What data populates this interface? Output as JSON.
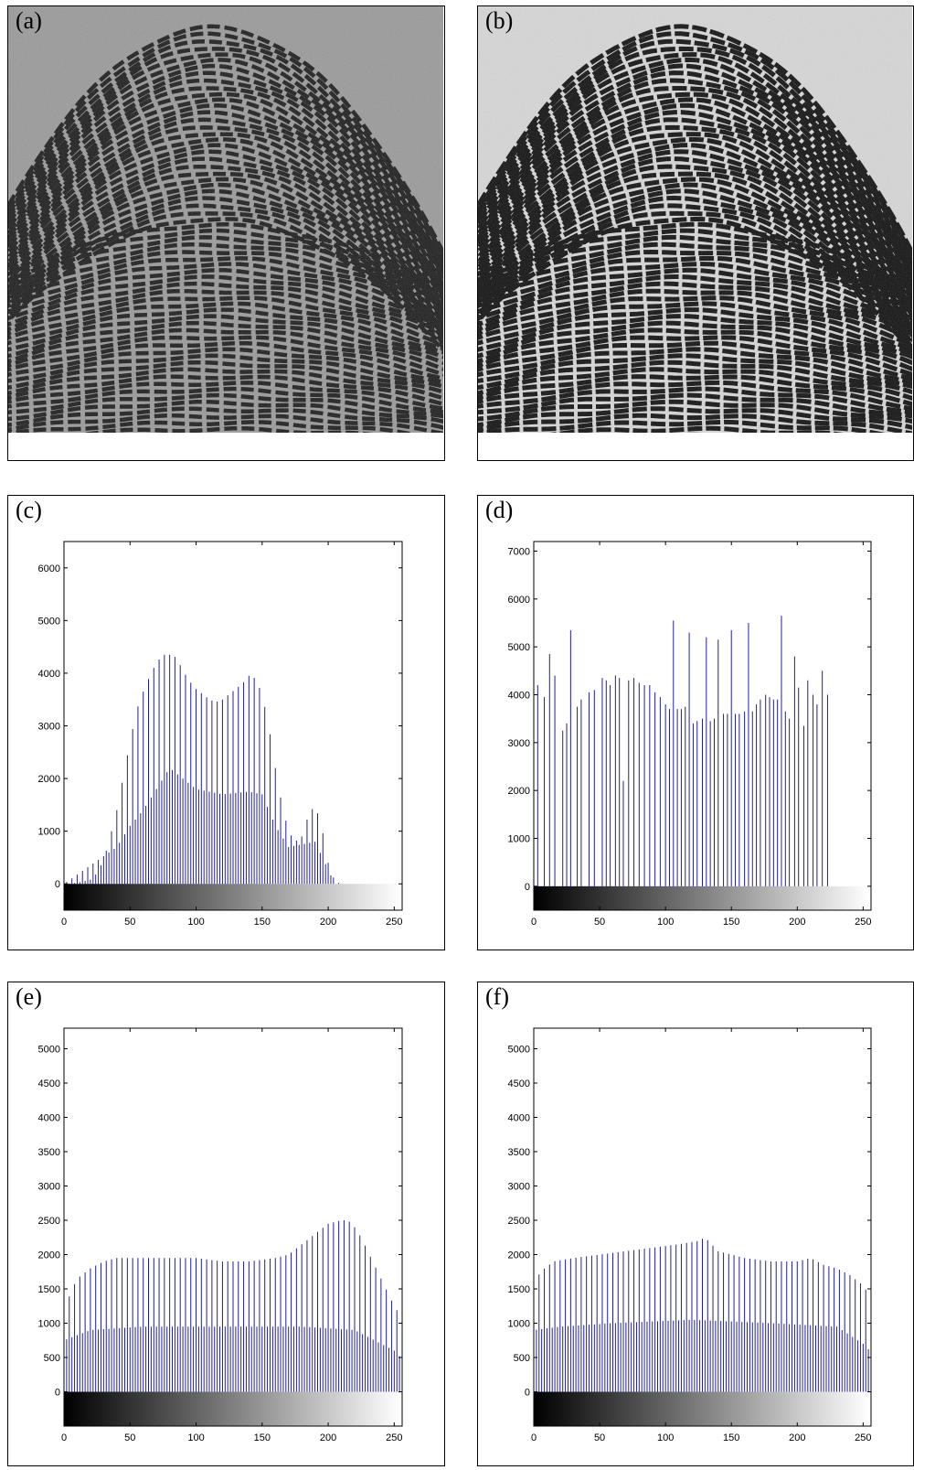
{
  "panels": {
    "a": {
      "label": "(a)"
    },
    "b": {
      "label": "(b)"
    },
    "c": {
      "label": "(c)"
    },
    "d": {
      "label": "(d)"
    },
    "e": {
      "label": "(e)"
    },
    "f": {
      "label": "(f)"
    }
  },
  "colors": {
    "bar": "#1f1f9a",
    "axis": "#000000"
  },
  "chart_data": [
    {
      "panel": "c",
      "type": "bar",
      "xlim": [
        0,
        256
      ],
      "ylim": [
        -500,
        6500
      ],
      "xticks": [
        0,
        50,
        100,
        150,
        200,
        250
      ],
      "yticks": [
        0,
        1000,
        2000,
        3000,
        4000,
        5000,
        6000
      ],
      "colorbar": true,
      "envelope": [
        [
          0,
          0
        ],
        [
          10,
          20
        ],
        [
          20,
          80
        ],
        [
          25,
          200
        ],
        [
          30,
          450
        ],
        [
          35,
          900
        ],
        [
          40,
          1400
        ],
        [
          45,
          2050
        ],
        [
          50,
          2700
        ],
        [
          55,
          3300
        ],
        [
          60,
          3650
        ],
        [
          65,
          3950
        ],
        [
          70,
          4200
        ],
        [
          75,
          4350
        ],
        [
          80,
          4350
        ],
        [
          85,
          4300
        ],
        [
          90,
          4050
        ],
        [
          95,
          3850
        ],
        [
          100,
          3700
        ],
        [
          105,
          3600
        ],
        [
          110,
          3500
        ],
        [
          115,
          3450
        ],
        [
          120,
          3500
        ],
        [
          125,
          3600
        ],
        [
          130,
          3700
        ],
        [
          135,
          3800
        ],
        [
          140,
          3950
        ],
        [
          145,
          3900
        ],
        [
          150,
          3600
        ],
        [
          155,
          3000
        ],
        [
          160,
          2200
        ],
        [
          165,
          1500
        ],
        [
          170,
          1000
        ],
        [
          175,
          800
        ],
        [
          180,
          900
        ],
        [
          185,
          1300
        ],
        [
          190,
          1500
        ],
        [
          195,
          1100
        ],
        [
          200,
          400
        ],
        [
          205,
          50
        ],
        [
          210,
          0
        ],
        [
          256,
          0
        ]
      ],
      "alt_envelope": [
        [
          0,
          0
        ],
        [
          40,
          700
        ],
        [
          50,
          1100
        ],
        [
          60,
          1400
        ],
        [
          70,
          1800
        ],
        [
          80,
          2200
        ],
        [
          90,
          2000
        ],
        [
          100,
          1800
        ],
        [
          120,
          1700
        ],
        [
          140,
          1750
        ],
        [
          150,
          1700
        ],
        [
          160,
          1100
        ],
        [
          170,
          700
        ],
        [
          190,
          800
        ],
        [
          205,
          0
        ],
        [
          256,
          0
        ]
      ]
    },
    {
      "panel": "d",
      "type": "bar",
      "xlim": [
        0,
        256
      ],
      "ylim": [
        -500,
        7200
      ],
      "xticks": [
        0,
        50,
        100,
        150,
        200,
        250
      ],
      "yticks": [
        0,
        1000,
        2000,
        3000,
        4000,
        5000,
        6000,
        7000
      ],
      "colorbar": true,
      "bars": [
        [
          3,
          4200
        ],
        [
          8,
          3950
        ],
        [
          12,
          4850
        ],
        [
          16,
          4400
        ],
        [
          22,
          3250
        ],
        [
          25,
          3400
        ],
        [
          28,
          5350
        ],
        [
          33,
          3750
        ],
        [
          36,
          3900
        ],
        [
          42,
          4050
        ],
        [
          46,
          4100
        ],
        [
          52,
          4350
        ],
        [
          55,
          4300
        ],
        [
          58,
          4200
        ],
        [
          62,
          4400
        ],
        [
          65,
          4350
        ],
        [
          68,
          2200
        ],
        [
          72,
          4300
        ],
        [
          76,
          4350
        ],
        [
          80,
          4250
        ],
        [
          84,
          4200
        ],
        [
          88,
          4200
        ],
        [
          92,
          4050
        ],
        [
          96,
          3950
        ],
        [
          100,
          3800
        ],
        [
          103,
          3700
        ],
        [
          106,
          5550
        ],
        [
          109,
          3700
        ],
        [
          112,
          3700
        ],
        [
          115,
          3750
        ],
        [
          118,
          5300
        ],
        [
          121,
          3400
        ],
        [
          124,
          3450
        ],
        [
          128,
          3500
        ],
        [
          131,
          5200
        ],
        [
          134,
          3450
        ],
        [
          137,
          3500
        ],
        [
          140,
          5150
        ],
        [
          144,
          3600
        ],
        [
          147,
          3600
        ],
        [
          150,
          5350
        ],
        [
          153,
          3600
        ],
        [
          156,
          3600
        ],
        [
          160,
          3650
        ],
        [
          163,
          5500
        ],
        [
          166,
          3650
        ],
        [
          169,
          3800
        ],
        [
          172,
          3900
        ],
        [
          176,
          4000
        ],
        [
          179,
          3950
        ],
        [
          182,
          3900
        ],
        [
          185,
          3900
        ],
        [
          188,
          5650
        ],
        [
          191,
          3650
        ],
        [
          194,
          3500
        ],
        [
          198,
          4800
        ],
        [
          201,
          4150
        ],
        [
          205,
          3350
        ],
        [
          208,
          4300
        ],
        [
          212,
          4000
        ],
        [
          215,
          3800
        ],
        [
          219,
          4500
        ],
        [
          223,
          4000
        ]
      ]
    },
    {
      "panel": "e",
      "type": "bar",
      "xlim": [
        0,
        256
      ],
      "ylim": [
        -500,
        5300
      ],
      "xticks": [
        0,
        50,
        100,
        150,
        200,
        250
      ],
      "yticks": [
        0,
        500,
        1000,
        1500,
        2000,
        2500,
        3000,
        3500,
        4000,
        4500,
        5000
      ],
      "colorbar": true,
      "envelope": [
        [
          0,
          1150
        ],
        [
          5,
          1450
        ],
        [
          10,
          1650
        ],
        [
          20,
          1800
        ],
        [
          30,
          1900
        ],
        [
          40,
          1950
        ],
        [
          60,
          1950
        ],
        [
          80,
          1950
        ],
        [
          100,
          1950
        ],
        [
          120,
          1900
        ],
        [
          140,
          1900
        ],
        [
          160,
          1950
        ],
        [
          170,
          2000
        ],
        [
          180,
          2150
        ],
        [
          190,
          2300
        ],
        [
          200,
          2450
        ],
        [
          210,
          2500
        ],
        [
          215,
          2500
        ],
        [
          220,
          2400
        ],
        [
          225,
          2250
        ],
        [
          230,
          2050
        ],
        [
          235,
          1850
        ],
        [
          240,
          1650
        ],
        [
          245,
          1450
        ],
        [
          250,
          1250
        ],
        [
          255,
          1100
        ]
      ],
      "alt_envelope": [
        [
          0,
          750
        ],
        [
          20,
          900
        ],
        [
          60,
          950
        ],
        [
          120,
          950
        ],
        [
          180,
          950
        ],
        [
          220,
          900
        ],
        [
          250,
          600
        ],
        [
          255,
          500
        ]
      ]
    },
    {
      "panel": "f",
      "type": "bar",
      "xlim": [
        0,
        256
      ],
      "ylim": [
        -500,
        5300
      ],
      "xticks": [
        0,
        50,
        100,
        150,
        200,
        250
      ],
      "yticks": [
        0,
        500,
        1000,
        1500,
        2000,
        2500,
        3000,
        3500,
        4000,
        4500,
        5000
      ],
      "colorbar": true,
      "envelope": [
        [
          0,
          1550
        ],
        [
          5,
          1750
        ],
        [
          15,
          1900
        ],
        [
          30,
          1950
        ],
        [
          50,
          2000
        ],
        [
          70,
          2050
        ],
        [
          90,
          2100
        ],
        [
          110,
          2150
        ],
        [
          125,
          2200
        ],
        [
          130,
          2250
        ],
        [
          140,
          2050
        ],
        [
          160,
          1950
        ],
        [
          180,
          1900
        ],
        [
          200,
          1900
        ],
        [
          210,
          1950
        ],
        [
          220,
          1850
        ],
        [
          230,
          1800
        ],
        [
          240,
          1700
        ],
        [
          250,
          1550
        ],
        [
          255,
          1400
        ]
      ],
      "alt_envelope": [
        [
          0,
          900
        ],
        [
          20,
          950
        ],
        [
          60,
          1000
        ],
        [
          120,
          1050
        ],
        [
          180,
          1000
        ],
        [
          230,
          950
        ],
        [
          250,
          700
        ],
        [
          255,
          600
        ]
      ]
    }
  ]
}
